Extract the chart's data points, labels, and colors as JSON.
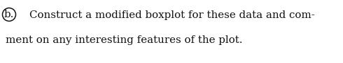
{
  "line1": "Construct a modified boxplot for these data and com-",
  "line2": "ment on any interesting features of the plot.",
  "label": "b.",
  "background_color": "#ffffff",
  "text_color": "#111111",
  "font_size": 10.8,
  "fig_width": 4.9,
  "fig_height": 0.91,
  "dpi": 100
}
